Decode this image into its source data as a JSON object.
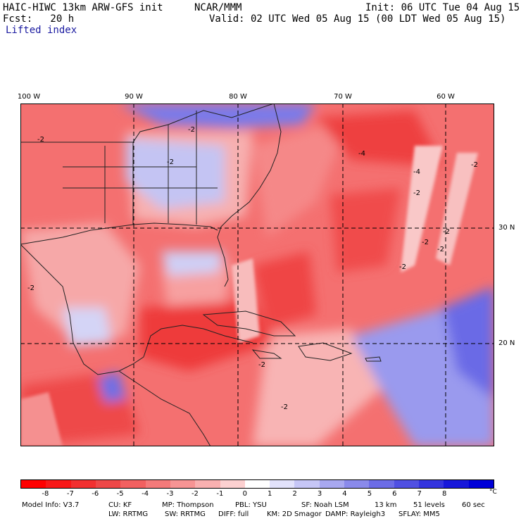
{
  "header": {
    "model": "HAIC-HIWC 13km ARW-GFS init",
    "org": "NCAR/MMM",
    "init": "Init: 06 UTC Tue 04 Aug 15",
    "fcst": "Fcst:   20 h",
    "valid": "Valid: 02 UTC Wed 05 Aug 15 (00 LDT Wed 05 Aug 15)",
    "field": "Lifted index"
  },
  "map": {
    "lon_labels": [
      "100 W",
      "90 W",
      "80 W",
      "70 W",
      "60 W"
    ],
    "lat_labels": [
      "30 N",
      "20 N"
    ],
    "contour_labels": [
      "-2",
      "-2",
      "-2",
      "-2",
      "-4",
      "-4",
      "-2",
      "-2",
      "-2",
      "-2",
      "-2",
      "-2",
      "-2",
      "-2"
    ],
    "colors": {
      "warm_deep": "#ee3333",
      "warm_mid": "#f57a7a",
      "warm_light": "#fbc0c0",
      "cool_light": "#c8c8f5",
      "cool_mid": "#8888ee",
      "cool_deep": "#3a3ad8",
      "coast": "#222222",
      "grid": "#000000"
    }
  },
  "colorbar": {
    "ticks": [
      "-8",
      "-7",
      "-6",
      "-5",
      "-4",
      "-3",
      "-2",
      "-1",
      "0",
      "1",
      "2",
      "3",
      "4",
      "5",
      "6",
      "7",
      "8"
    ],
    "unit": "°C",
    "colors": [
      "#ff0000",
      "#f81818",
      "#f23030",
      "#ee4848",
      "#f26060",
      "#f47a7a",
      "#f79494",
      "#f9b0b0",
      "#fcd0d0",
      "#ffffff",
      "#e2e2fb",
      "#c6c6f6",
      "#a8a8f0",
      "#8a8aeb",
      "#6c6ce6",
      "#5050e2",
      "#3434de",
      "#1818da",
      "#0000d8"
    ]
  },
  "footer": {
    "line1": [
      "Model Info: V3.7",
      "CU: KF",
      "MP: Thompson",
      "PBL: YSU",
      "SF: Noah LSM",
      "13 km",
      "51 levels",
      "60 sec"
    ],
    "line2": [
      "LW: RRTMG",
      "SW: RRTMG",
      "DIFF: full",
      "KM: 2D Smagor",
      "DAMP: Rayleigh3",
      "SFLAY: MM5"
    ]
  }
}
